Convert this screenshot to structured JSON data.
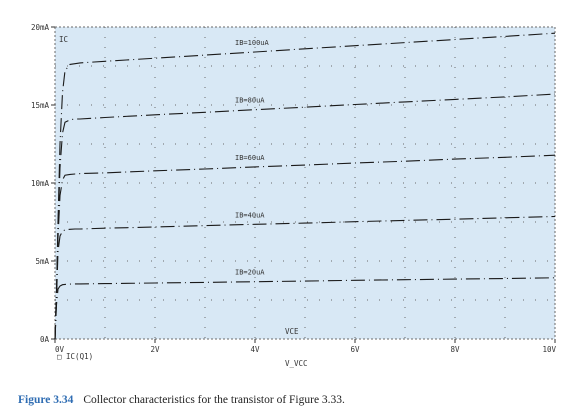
{
  "chart_data": {
    "type": "line",
    "x": [
      0,
      0.03,
      0.06,
      0.1,
      0.15,
      0.2,
      0.3,
      0.4,
      0.5,
      1,
      2,
      3,
      4,
      5,
      6,
      7,
      8,
      9,
      10
    ],
    "series": [
      {
        "name": "IB=100uA",
        "values": [
          0,
          3.0,
          7.5,
          12.5,
          15.8,
          17.2,
          17.6,
          17.65,
          17.7,
          17.8,
          18.0,
          18.2,
          18.4,
          18.6,
          18.8,
          19.0,
          19.2,
          19.4,
          19.6
        ]
      },
      {
        "name": "IB=80uA",
        "values": [
          0,
          2.9,
          7.0,
          11.0,
          13.2,
          13.9,
          14.05,
          14.1,
          14.1,
          14.2,
          14.37,
          14.53,
          14.7,
          14.86,
          15.03,
          15.2,
          15.36,
          15.52,
          15.7
        ]
      },
      {
        "name": "IB=60uA",
        "values": [
          0,
          2.8,
          6.5,
          9.2,
          10.2,
          10.5,
          10.55,
          10.58,
          10.6,
          10.65,
          10.78,
          10.9,
          11.03,
          11.15,
          11.28,
          11.4,
          11.53,
          11.65,
          11.78
        ]
      },
      {
        "name": "IB=40uA",
        "values": [
          0,
          2.6,
          5.6,
          6.6,
          6.9,
          7.0,
          7.03,
          7.05,
          7.05,
          7.1,
          7.18,
          7.27,
          7.35,
          7.43,
          7.52,
          7.6,
          7.68,
          7.77,
          7.85
        ]
      },
      {
        "name": "IB=20uA",
        "values": [
          0,
          2.2,
          3.2,
          3.4,
          3.48,
          3.5,
          3.52,
          3.53,
          3.53,
          3.55,
          3.59,
          3.63,
          3.67,
          3.71,
          3.76,
          3.8,
          3.84,
          3.88,
          3.92
        ]
      }
    ],
    "xlim": [
      0,
      10
    ],
    "ylim": [
      0,
      20
    ],
    "x_ticks": [
      0,
      2,
      4,
      6,
      8,
      10
    ],
    "x_tick_labels": [
      "0V",
      "2V",
      "4V",
      "6V",
      "8V",
      "10V"
    ],
    "y_ticks": [
      0,
      5,
      10,
      15,
      20
    ],
    "y_tick_labels": [
      "0A",
      "5mA",
      "10mA",
      "15mA",
      "20mA"
    ],
    "xlabel": "V_VCC",
    "x_axis_annotation": "VCE",
    "y_axis_annotation": "IC",
    "legend": "□ IC(Q1)",
    "legend_placement": "bottom-left",
    "grid": "dotted",
    "colors": {
      "plot_background": "#d8e8f5",
      "curve": "#1a1a1a",
      "grid": "#6a6a6a",
      "axis_text": "#333333"
    }
  },
  "caption": {
    "label": "Figure 3.34",
    "text": "Collector characteristics for the transistor of Figure 3.33."
  }
}
